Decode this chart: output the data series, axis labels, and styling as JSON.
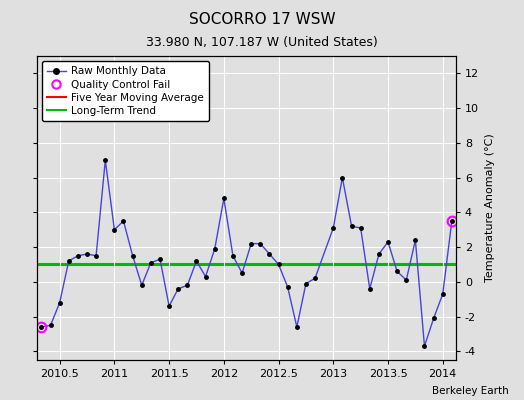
{
  "title": "SOCORRO 17 WSW",
  "subtitle": "33.980 N, 107.187 W (United States)",
  "ylabel": "Temperature Anomaly (°C)",
  "credit": "Berkeley Earth",
  "xlim": [
    2010.29,
    2014.12
  ],
  "ylim": [
    -4.5,
    13.0
  ],
  "yticks": [
    -4,
    -2,
    0,
    2,
    4,
    6,
    8,
    10,
    12
  ],
  "xticks": [
    2010.5,
    2011.0,
    2011.5,
    2012.0,
    2012.5,
    2013.0,
    2013.5,
    2014.0
  ],
  "xticklabels": [
    "2010.5",
    "2011",
    "2011.5",
    "2012",
    "2012.5",
    "2013",
    "2013.5",
    "2014"
  ],
  "long_term_trend_value": 1.0,
  "background_color": "#e0e0e0",
  "plot_bg_color": "#e0e0e0",
  "grid_color": "#ffffff",
  "line_color": "#4444dd",
  "marker_color": "#000000",
  "qc_fail_color": "#ff00ff",
  "trend_color": "#00bb00",
  "moving_avg_color": "#ff0000",
  "title_fontsize": 11,
  "subtitle_fontsize": 9,
  "tick_fontsize": 8,
  "ylabel_fontsize": 8,
  "legend_fontsize": 7.5,
  "credit_fontsize": 7.5,
  "raw_data": [
    [
      2010.333,
      -2.6
    ],
    [
      2010.417,
      -2.5
    ],
    [
      2010.5,
      -1.2
    ],
    [
      2010.583,
      1.2
    ],
    [
      2010.667,
      1.5
    ],
    [
      2010.75,
      1.6
    ],
    [
      2010.833,
      1.5
    ],
    [
      2010.917,
      7.0
    ],
    [
      2011.0,
      3.0
    ],
    [
      2011.083,
      3.5
    ],
    [
      2011.167,
      1.5
    ],
    [
      2011.25,
      -0.2
    ],
    [
      2011.333,
      1.1
    ],
    [
      2011.417,
      1.3
    ],
    [
      2011.5,
      -1.4
    ],
    [
      2011.583,
      -0.4
    ],
    [
      2011.667,
      -0.2
    ],
    [
      2011.75,
      1.2
    ],
    [
      2011.833,
      0.3
    ],
    [
      2011.917,
      1.9
    ],
    [
      2012.0,
      4.8
    ],
    [
      2012.083,
      1.5
    ],
    [
      2012.167,
      0.5
    ],
    [
      2012.25,
      2.2
    ],
    [
      2012.333,
      2.2
    ],
    [
      2012.417,
      1.6
    ],
    [
      2012.5,
      1.0
    ],
    [
      2012.583,
      -0.3
    ],
    [
      2012.667,
      -2.6
    ],
    [
      2012.75,
      -0.1
    ],
    [
      2012.833,
      0.2
    ],
    [
      2013.0,
      3.1
    ],
    [
      2013.083,
      6.0
    ],
    [
      2013.167,
      3.2
    ],
    [
      2013.25,
      3.1
    ],
    [
      2013.333,
      -0.4
    ],
    [
      2013.417,
      1.6
    ],
    [
      2013.5,
      2.3
    ],
    [
      2013.583,
      0.6
    ],
    [
      2013.667,
      0.1
    ],
    [
      2013.75,
      2.4
    ],
    [
      2013.833,
      -3.7
    ],
    [
      2013.917,
      -2.1
    ],
    [
      2014.0,
      -0.7
    ],
    [
      2014.083,
      3.5
    ]
  ],
  "qc_fail_points": [
    [
      2010.333,
      -2.6
    ],
    [
      2014.083,
      3.5
    ]
  ]
}
